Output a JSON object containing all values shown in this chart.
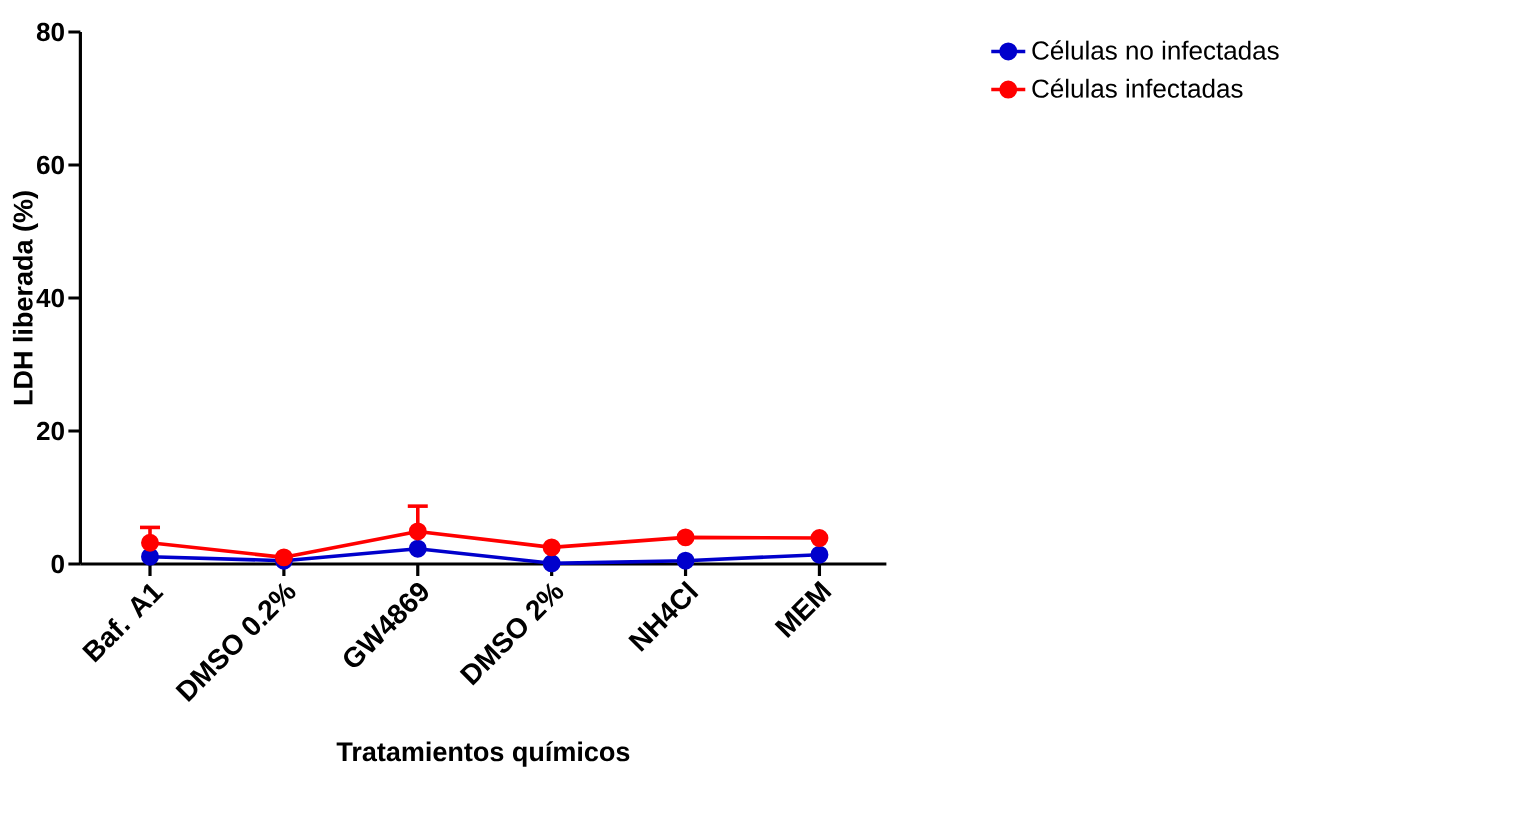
{
  "chart_data": {
    "type": "line",
    "xlabel": "Tratamientos químicos",
    "ylabel": "LDH liberada (%)",
    "categories": [
      "Baf. A1",
      "DMSO 0.2%",
      "GW4869",
      "DMSO 2%",
      "NH4Cl",
      "MEM"
    ],
    "series": [
      {
        "name": "Células no infectadas",
        "color": "#0000cc",
        "values": [
          1.1,
          0.5,
          2.3,
          0.1,
          0.5,
          1.4
        ]
      },
      {
        "name": "Células infectadas",
        "color": "#ff0000",
        "values": [
          3.2,
          1.0,
          4.9,
          2.5,
          4.0,
          3.9
        ],
        "errors": [
          [
            3.2,
            5.5
          ],
          null,
          [
            4.9,
            8.7
          ],
          null,
          null,
          null
        ]
      }
    ],
    "ylim": [
      0,
      80
    ],
    "yticks": [
      0,
      20,
      40,
      60,
      80
    ],
    "marker": "circle",
    "line_style": "solid",
    "legend": "top right",
    "grid": false
  }
}
